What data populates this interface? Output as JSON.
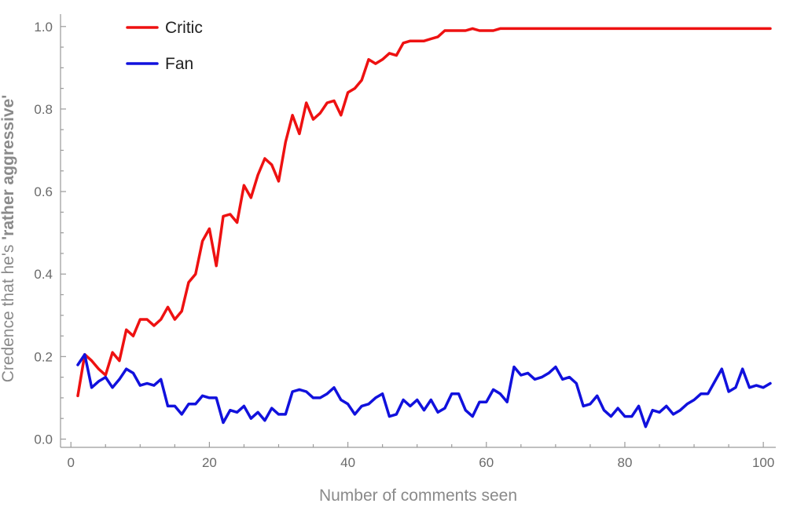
{
  "chart_data": {
    "type": "line",
    "title": "",
    "xlabel": "Number of comments seen",
    "ylabel_plain": "Credence that he's ",
    "ylabel_bold": "'rather aggressive'",
    "xlim": [
      0,
      102
    ],
    "ylim": [
      0,
      1.0
    ],
    "xticks": [
      0,
      20,
      40,
      60,
      80,
      100
    ],
    "yticks": [
      0.0,
      0.2,
      0.4,
      0.6,
      0.8,
      1.0
    ],
    "xtick_labels": [
      "0",
      "20",
      "40",
      "60",
      "80",
      "100"
    ],
    "ytick_labels": [
      "0.0",
      "0.2",
      "0.4",
      "0.6",
      "0.8",
      "1.0"
    ],
    "legend_position": "top-left",
    "grid": false,
    "x": [
      1,
      2,
      3,
      4,
      5,
      6,
      7,
      8,
      9,
      10,
      11,
      12,
      13,
      14,
      15,
      16,
      17,
      18,
      19,
      20,
      21,
      22,
      23,
      24,
      25,
      26,
      27,
      28,
      29,
      30,
      31,
      32,
      33,
      34,
      35,
      36,
      37,
      38,
      39,
      40,
      41,
      42,
      43,
      44,
      45,
      46,
      47,
      48,
      49,
      50,
      51,
      52,
      53,
      54,
      55,
      56,
      57,
      58,
      59,
      60,
      61,
      62,
      63,
      64,
      65,
      66,
      67,
      68,
      69,
      70,
      71,
      72,
      73,
      74,
      75,
      76,
      77,
      78,
      79,
      80,
      81,
      82,
      83,
      84,
      85,
      86,
      87,
      88,
      89,
      90,
      91,
      92,
      93,
      94,
      95,
      96,
      97,
      98,
      99,
      100,
      101
    ],
    "series": [
      {
        "name": "Critic",
        "color": "#ee1111",
        "values": [
          0.105,
          0.205,
          0.19,
          0.17,
          0.155,
          0.21,
          0.19,
          0.265,
          0.25,
          0.29,
          0.29,
          0.275,
          0.29,
          0.32,
          0.29,
          0.31,
          0.38,
          0.4,
          0.48,
          0.51,
          0.42,
          0.54,
          0.545,
          0.525,
          0.615,
          0.585,
          0.64,
          0.68,
          0.665,
          0.625,
          0.72,
          0.785,
          0.74,
          0.815,
          0.775,
          0.79,
          0.815,
          0.82,
          0.785,
          0.84,
          0.85,
          0.87,
          0.92,
          0.91,
          0.92,
          0.935,
          0.93,
          0.96,
          0.965,
          0.965,
          0.965,
          0.97,
          0.975,
          0.99,
          0.99,
          0.99,
          0.99,
          0.995,
          0.99,
          0.99,
          0.99,
          0.995,
          0.995,
          0.995,
          0.995,
          0.995,
          0.995,
          0.995,
          0.995,
          0.995,
          0.995,
          0.995,
          0.995,
          0.995,
          0.995,
          0.995,
          0.995,
          0.995,
          0.995,
          0.995,
          0.995,
          0.995,
          0.995,
          0.995,
          0.995,
          0.995,
          0.995,
          0.995,
          0.995,
          0.995,
          0.995,
          0.995,
          0.995,
          0.995,
          0.995,
          0.995,
          0.995,
          0.995,
          0.995,
          0.995,
          0.995
        ]
      },
      {
        "name": "Fan",
        "color": "#1111dd",
        "values": [
          0.18,
          0.205,
          0.125,
          0.14,
          0.15,
          0.125,
          0.145,
          0.17,
          0.16,
          0.13,
          0.135,
          0.13,
          0.145,
          0.08,
          0.08,
          0.06,
          0.085,
          0.085,
          0.105,
          0.1,
          0.1,
          0.04,
          0.07,
          0.065,
          0.08,
          0.05,
          0.065,
          0.045,
          0.075,
          0.06,
          0.06,
          0.115,
          0.12,
          0.115,
          0.1,
          0.1,
          0.11,
          0.125,
          0.095,
          0.085,
          0.06,
          0.08,
          0.085,
          0.1,
          0.11,
          0.055,
          0.06,
          0.095,
          0.08,
          0.095,
          0.07,
          0.095,
          0.065,
          0.075,
          0.11,
          0.11,
          0.07,
          0.055,
          0.09,
          0.09,
          0.12,
          0.11,
          0.09,
          0.175,
          0.155,
          0.16,
          0.145,
          0.15,
          0.16,
          0.175,
          0.145,
          0.15,
          0.135,
          0.08,
          0.085,
          0.105,
          0.07,
          0.055,
          0.075,
          0.055,
          0.055,
          0.08,
          0.03,
          0.07,
          0.065,
          0.08,
          0.06,
          0.07,
          0.085,
          0.095,
          0.11,
          0.11,
          0.14,
          0.17,
          0.115,
          0.125,
          0.17,
          0.125,
          0.13,
          0.125,
          0.135
        ]
      }
    ]
  }
}
